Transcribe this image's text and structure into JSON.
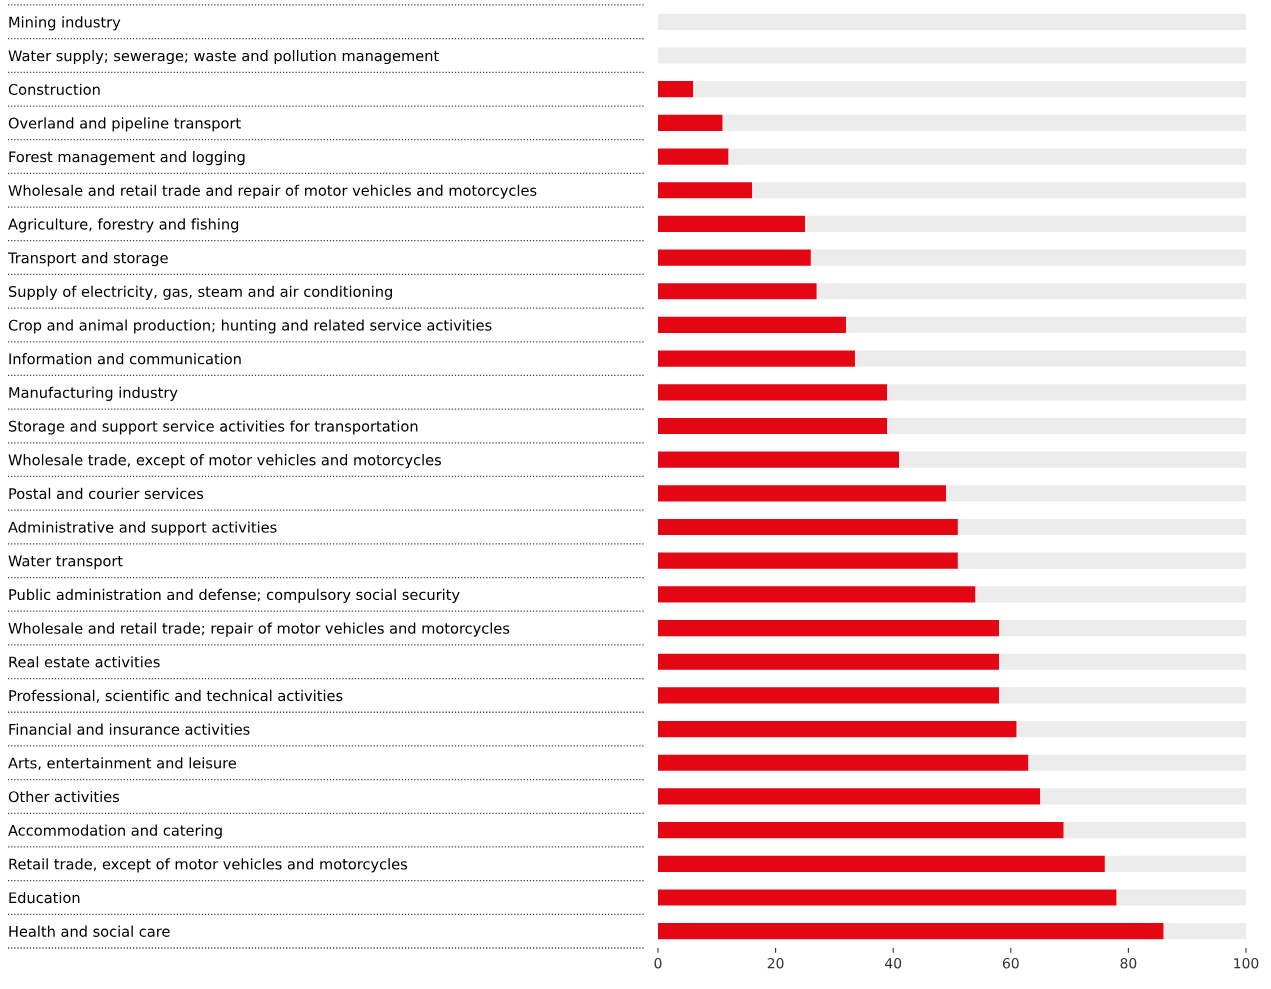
{
  "chart_data": {
    "type": "bar",
    "orientation": "horizontal",
    "stacked": true,
    "categories": [
      "Mining industry",
      "Water supply; sewerage; waste and pollution management",
      "Construction",
      "Overland and pipeline transport",
      "Forest management and logging",
      "Wholesale and retail trade and repair of motor vehicles and motorcycles",
      "Agriculture, forestry and fishing",
      "Transport and storage",
      "Supply of electricity, gas, steam and air conditioning",
      "Crop and animal production; hunting and related service activities",
      "Information and communication",
      "Manufacturing industry",
      "Storage and support service activities for transportation",
      "Wholesale trade, except of motor vehicles and motorcycles",
      "Postal and courier services",
      "Administrative and support activities",
      "Water transport",
      "Public administration and defense; compulsory social security",
      "Wholesale and retail trade; repair of motor vehicles and motorcycles",
      "Real estate activities",
      "Professional, scientific and technical activities",
      "Financial and insurance activities",
      "Arts, entertainment and leisure",
      "Other activities",
      "Accommodation and catering",
      "Retail trade, except of motor vehicles and motorcycles",
      "Education",
      "Health and social care"
    ],
    "series": [
      {
        "color": "#e30613",
        "values": [
          0,
          0,
          6,
          11,
          12,
          16,
          25,
          26,
          27,
          32,
          33.5,
          39,
          39,
          41,
          49,
          51,
          51,
          54,
          58,
          58,
          58,
          61,
          63,
          65,
          69,
          76,
          78,
          86
        ]
      },
      {
        "color": "#ececec",
        "values": [
          100,
          100,
          94,
          89,
          88,
          84,
          75,
          74,
          73,
          68,
          66.5,
          61,
          61,
          59,
          51,
          49,
          49,
          46,
          42,
          42,
          42,
          39,
          37,
          35,
          31,
          24,
          22,
          14
        ]
      }
    ],
    "xlim": [
      0,
      100
    ],
    "xticks": [
      0,
      20,
      40,
      60,
      80,
      100
    ],
    "grid": false,
    "legend": false
  }
}
